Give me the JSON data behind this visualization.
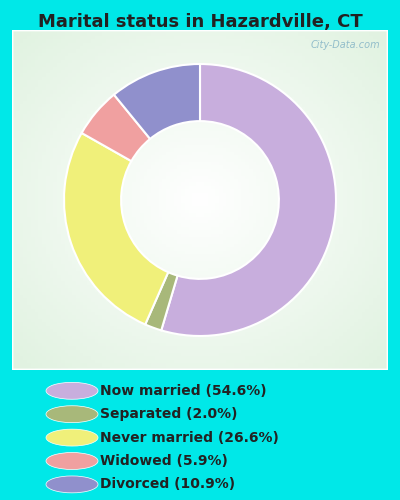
{
  "title": "Marital status in Hazardville, CT",
  "categories": [
    "Now married",
    "Separated",
    "Never married",
    "Widowed",
    "Divorced"
  ],
  "values": [
    54.6,
    2.0,
    26.6,
    5.9,
    10.9
  ],
  "colors": [
    "#c8aedd",
    "#a8b87a",
    "#f0f07a",
    "#f0a0a0",
    "#9090cc"
  ],
  "legend_labels": [
    "Now married (54.6%)",
    "Separated (2.0%)",
    "Never married (26.6%)",
    "Widowed (5.9%)",
    "Divorced (10.9%)"
  ],
  "bg_cyan": "#00e8e8",
  "watermark": "City-Data.com",
  "title_fontsize": 13,
  "legend_fontsize": 10,
  "donut_width": 0.42,
  "start_angle": 90
}
